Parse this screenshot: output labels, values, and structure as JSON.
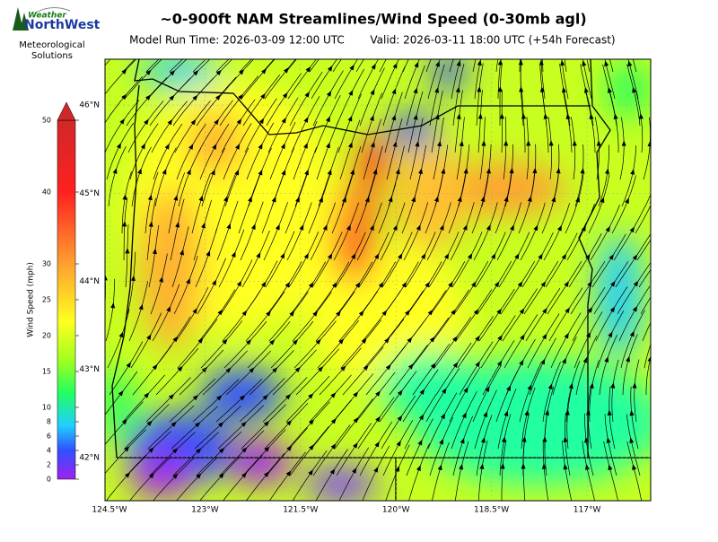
{
  "logo": {
    "top": "Weather",
    "name": "NorthWest",
    "caption": [
      "Meteorological",
      "Solutions"
    ]
  },
  "header": {
    "title": "~0-900ft NAM Streamlines/Wind Speed (0-30mb agl)",
    "run_time": "Model Run Time: 2026-03-09 12:00 UTC",
    "valid": "Valid: 2026-03-11 18:00 UTC  (+54h Forecast)"
  },
  "colorbar": {
    "label": "Wind Speed (mph)",
    "clim": [
      0,
      50
    ],
    "ticks": [
      0,
      2,
      4,
      6,
      8,
      10,
      15,
      20,
      25,
      30,
      40,
      50
    ]
  },
  "map": {
    "lon_lim": [
      -124.57,
      -116.0
    ],
    "lat_lim": [
      41.51,
      46.52
    ],
    "lon_ticks": [
      {
        "value": -124.5,
        "label": "124.5°W"
      },
      {
        "value": -123,
        "label": "123°W"
      },
      {
        "value": -121.5,
        "label": "121.5°W"
      },
      {
        "value": -120,
        "label": "120°W"
      },
      {
        "value": -118.5,
        "label": "118.5°W"
      },
      {
        "value": -117,
        "label": "117°W"
      }
    ],
    "lat_ticks": [
      {
        "value": 46,
        "label": "46°N"
      },
      {
        "value": 45,
        "label": "45°N"
      },
      {
        "value": 44,
        "label": "44°N"
      },
      {
        "value": 43,
        "label": "43°N"
      },
      {
        "value": 42,
        "label": "42°N"
      }
    ]
  }
}
